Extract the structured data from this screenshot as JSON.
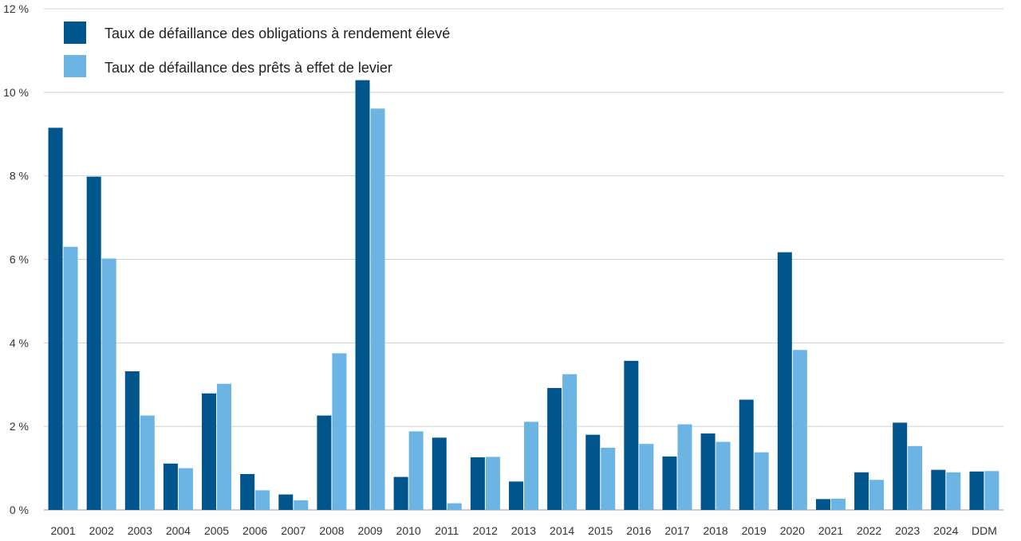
{
  "chart_data": {
    "type": "bar",
    "title": "",
    "xlabel": "",
    "ylabel": "",
    "ylim": [
      0,
      12
    ],
    "y_ticks": [
      0,
      2,
      4,
      6,
      8,
      10,
      12
    ],
    "y_tick_labels": [
      "0 %",
      "2 %",
      "4 %",
      "6 %",
      "8 %",
      "10 %",
      "12 %"
    ],
    "grid": true,
    "legend_position": "top-left",
    "categories": [
      "2001",
      "2002",
      "2003",
      "2004",
      "2005",
      "2006",
      "2007",
      "2008",
      "2009",
      "2010",
      "2011",
      "2012",
      "2013",
      "2014",
      "2015",
      "2016",
      "2017",
      "2018",
      "2019",
      "2020",
      "2021",
      "2022",
      "2023",
      "2024",
      "DDM"
    ],
    "series": [
      {
        "name": "Taux de défaillance des obligations à rendement élevé",
        "color": "#00558c",
        "values": [
          9.15,
          7.98,
          3.32,
          1.11,
          2.79,
          0.86,
          0.37,
          2.26,
          10.29,
          0.79,
          1.73,
          1.26,
          0.68,
          2.92,
          1.8,
          3.57,
          1.28,
          1.83,
          2.64,
          6.17,
          0.26,
          0.9,
          2.09,
          0.96,
          0.92
        ]
      },
      {
        "name": "Taux de défaillance des prêts à effet de levier",
        "color": "#6cb4e4",
        "values": [
          6.3,
          6.02,
          2.26,
          1.0,
          3.02,
          0.47,
          0.23,
          3.75,
          9.61,
          1.88,
          0.16,
          1.27,
          2.11,
          3.25,
          1.49,
          1.58,
          2.05,
          1.63,
          1.38,
          3.83,
          0.27,
          0.72,
          1.53,
          0.9,
          0.93
        ]
      }
    ]
  }
}
